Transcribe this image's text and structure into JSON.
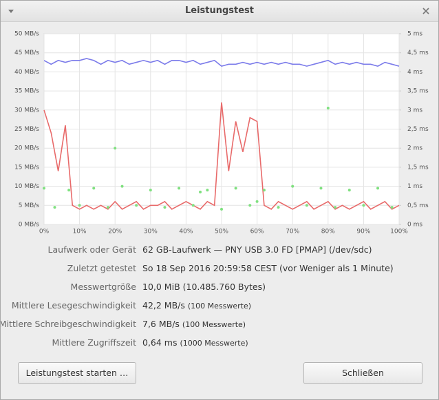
{
  "window": {
    "title": "Leistungstest"
  },
  "chart_data": {
    "type": "line",
    "x": [
      0,
      2,
      4,
      6,
      8,
      10,
      12,
      14,
      16,
      18,
      20,
      22,
      24,
      26,
      28,
      30,
      32,
      34,
      36,
      38,
      40,
      42,
      44,
      46,
      48,
      50,
      52,
      54,
      56,
      58,
      60,
      62,
      64,
      66,
      68,
      70,
      72,
      74,
      76,
      78,
      80,
      82,
      84,
      86,
      88,
      90,
      92,
      94,
      96,
      98,
      100
    ],
    "series": [
      {
        "color": "#7b7bea",
        "values": [
          43,
          42,
          43,
          42.5,
          43,
          43,
          43.5,
          43,
          42,
          43,
          42.5,
          43,
          42,
          42.5,
          43,
          42.5,
          43,
          42,
          43,
          43,
          42.5,
          43,
          42,
          42.5,
          43,
          41.5,
          42,
          42,
          42.5,
          42,
          42.5,
          42,
          42.5,
          42,
          42.5,
          42,
          42,
          41.5,
          42,
          42.5,
          43,
          42,
          42.5,
          42,
          42.5,
          42,
          42,
          41.5,
          42.5,
          42,
          41.5
        ]
      },
      {
        "color": "#e86a6a",
        "values": [
          30,
          24,
          14,
          26,
          5,
          4,
          5,
          4,
          5,
          4,
          6,
          4,
          5,
          6,
          4,
          5,
          5,
          6,
          4,
          5,
          6,
          5,
          4,
          6,
          5,
          32,
          14,
          27,
          19,
          28,
          27,
          5,
          4,
          6,
          5,
          4,
          5,
          6,
          4,
          5,
          6,
          4,
          5,
          4,
          5,
          6,
          4,
          5,
          6,
          4,
          5
        ]
      },
      {
        "color": "#7fe07f",
        "type": "scatter",
        "axis": "y2",
        "x": [
          0,
          3,
          7,
          10,
          14,
          18,
          22,
          26,
          30,
          34,
          38,
          42,
          46,
          50,
          54,
          58,
          62,
          66,
          70,
          74,
          78,
          82,
          86,
          90,
          94,
          98,
          20,
          44,
          80,
          60
        ],
        "values": [
          0.95,
          0.45,
          0.9,
          0.5,
          0.95,
          0.45,
          1.0,
          0.5,
          0.9,
          0.45,
          0.95,
          0.5,
          0.9,
          0.4,
          0.95,
          0.5,
          0.9,
          0.45,
          1.0,
          0.5,
          0.95,
          0.45,
          0.9,
          0.5,
          0.95,
          0.45,
          2.0,
          0.85,
          3.05,
          0.6
        ]
      }
    ],
    "xlim": [
      0,
      100
    ],
    "xticks": [
      {
        "value": 0,
        "label": "0%"
      },
      {
        "value": 10,
        "label": "10%"
      },
      {
        "value": 20,
        "label": "20%"
      },
      {
        "value": 30,
        "label": "30%"
      },
      {
        "value": 40,
        "label": "40%"
      },
      {
        "value": 50,
        "label": "50%"
      },
      {
        "value": 60,
        "label": "60%"
      },
      {
        "value": 70,
        "label": "70%"
      },
      {
        "value": 80,
        "label": "80%"
      },
      {
        "value": 90,
        "label": "90%"
      },
      {
        "value": 100,
        "label": "100%"
      }
    ],
    "ylim": [
      0,
      50
    ],
    "yticks": [
      {
        "value": 0,
        "label": "0 MB/s"
      },
      {
        "value": 5,
        "label": "5 MB/s"
      },
      {
        "value": 10,
        "label": "10 MB/s"
      },
      {
        "value": 15,
        "label": "15 MB/s"
      },
      {
        "value": 20,
        "label": "20 MB/s"
      },
      {
        "value": 25,
        "label": "25 MB/s"
      },
      {
        "value": 30,
        "label": "30 MB/s"
      },
      {
        "value": 35,
        "label": "35 MB/s"
      },
      {
        "value": 40,
        "label": "40 MB/s"
      },
      {
        "value": 45,
        "label": "45 MB/s"
      },
      {
        "value": 50,
        "label": "50 MB/s"
      }
    ],
    "y2lim": [
      0,
      5
    ],
    "y2ticks": [
      {
        "value": 0,
        "label": "0 ms"
      },
      {
        "value": 0.5,
        "label": "0,5 ms"
      },
      {
        "value": 1,
        "label": "1 ms"
      },
      {
        "value": 1.5,
        "label": "1,5 ms"
      },
      {
        "value": 2,
        "label": "2 ms"
      },
      {
        "value": 2.5,
        "label": "2,5 ms"
      },
      {
        "value": 3,
        "label": "3 ms"
      },
      {
        "value": 3.5,
        "label": "3,5 ms"
      },
      {
        "value": 4,
        "label": "4 ms"
      },
      {
        "value": 4.5,
        "label": "4,5 ms"
      },
      {
        "value": 5,
        "label": "5 ms"
      }
    ],
    "grid": true
  },
  "details": [
    {
      "label": "Laufwerk oder Gerät",
      "value": "62 GB-Laufwerk — PNY USB 3.0 FD [PMAP] (/dev/sdc)"
    },
    {
      "label": "Zuletzt getestet",
      "value": "So 18 Sep 2016 20:59:58 CEST (vor Weniger als 1 Minute)"
    },
    {
      "label": "Messwertgröße",
      "value": "10,0 MiB (10.485.760 Bytes)"
    },
    {
      "label": "Mittlere Lesegeschwindigkeit",
      "value": "42,2 MB/s",
      "note": "(100 Messwerte)"
    },
    {
      "label": "Mittlere Schreibgeschwindigkeit",
      "value": "7,6 MB/s",
      "note": "(100 Messwerte)"
    },
    {
      "label": "Mittlere Zugriffszeit",
      "value": "0,64 ms",
      "note": "(1000 Messwerte)"
    }
  ],
  "buttons": {
    "start": "Leistungstest starten …",
    "close": "Schließen"
  }
}
